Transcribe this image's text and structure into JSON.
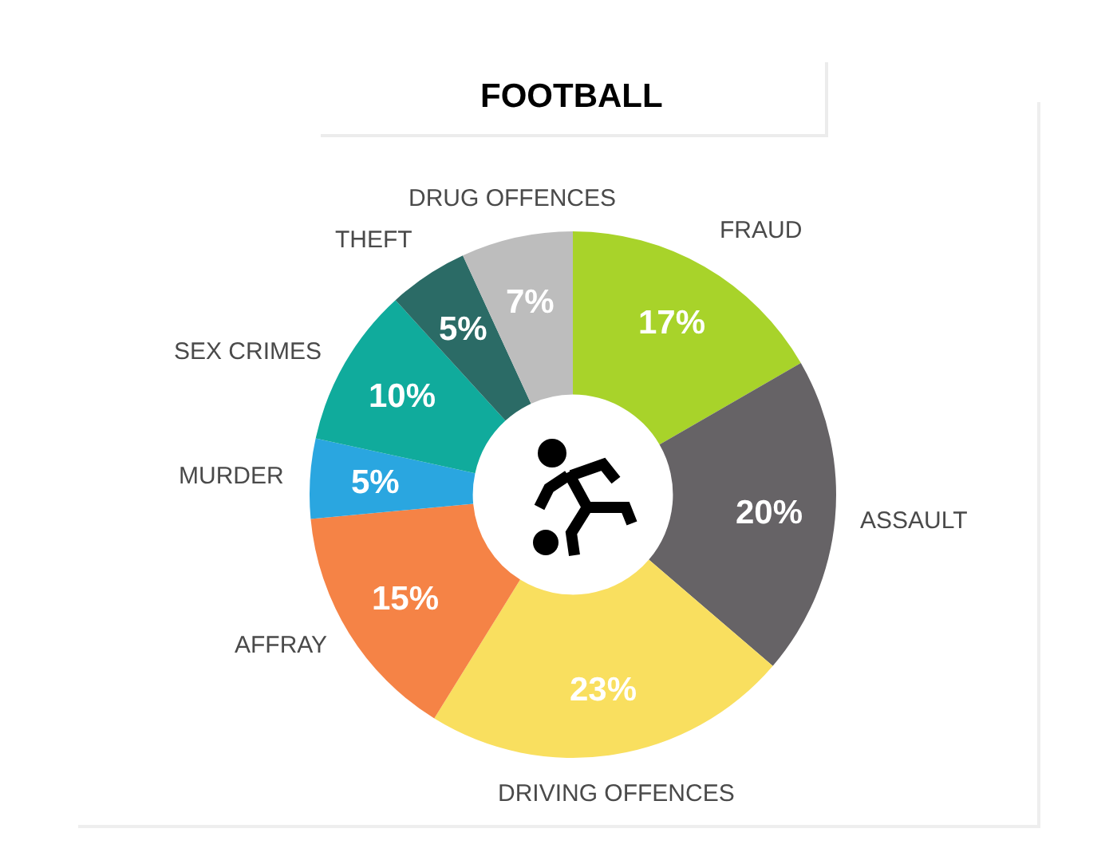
{
  "chart_data": {
    "type": "donut",
    "title": "FOOTBALL",
    "categories": [
      "FRAUD",
      "ASSAULT",
      "DRIVING OFFENCES",
      "AFFRAY",
      "MURDER",
      "SEX CRIMES",
      "THEFT",
      "DRUG OFFENCES"
    ],
    "values": [
      17,
      20,
      23,
      15,
      5,
      10,
      5,
      7
    ],
    "value_labels": [
      "17%",
      "20%",
      "23%",
      "15%",
      "5%",
      "10%",
      "5%",
      "7%"
    ],
    "colors": [
      "#a8d32a",
      "#666366",
      "#f9df5f",
      "#f58346",
      "#2aa6e0",
      "#10ab9c",
      "#2b6b66",
      "#bdbdbd"
    ]
  }
}
